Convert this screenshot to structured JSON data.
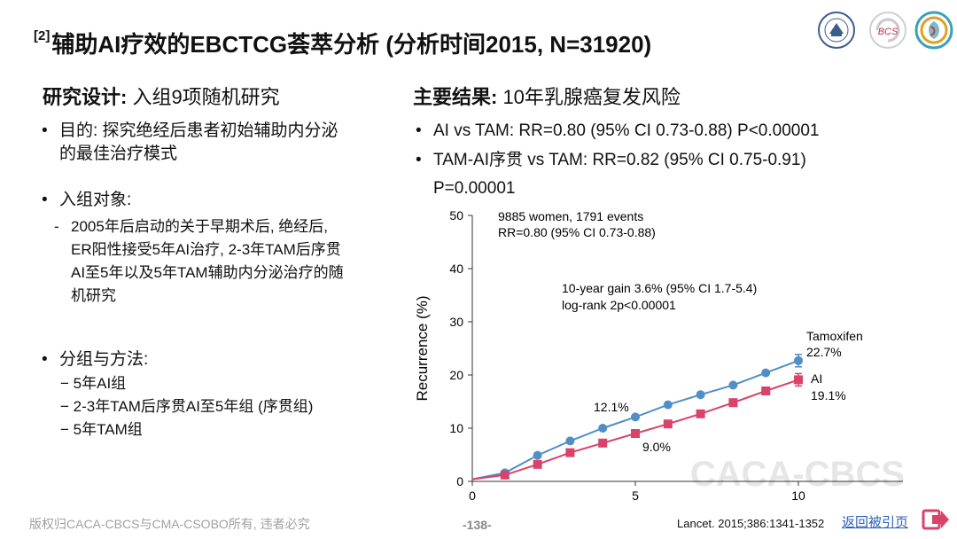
{
  "title": {
    "sup": "[2]",
    "main": "辅助AI疗效的EBCTCG荟萃分析 (分析时间2015, N=31920)"
  },
  "logos": [
    {
      "name": "hospital-logo",
      "text": ""
    },
    {
      "name": "bcs-logo",
      "text": "BCS"
    },
    {
      "name": "caca-logo",
      "text": ""
    }
  ],
  "left": {
    "heading_bold": "研究设计:",
    "heading_rest": " 入组9项随机研究",
    "purpose_line1": "目的: 探究绝经后患者初始辅助内分泌",
    "purpose_line2": "的最佳治疗模式",
    "subjects_label": "入组对象:",
    "subjects_lines": [
      "2005年后启动的关于早期术后, 绝经后,",
      "ER阳性接受5年AI治疗, 2-3年TAM后序贯",
      "AI至5年以及5年TAM辅助内分泌治疗的随",
      "机研究"
    ],
    "groups_label": "分组与方法:",
    "groups": [
      "5年AI组",
      "2-3年TAM后序贯AI至5年组 (序贯组)",
      "5年TAM组"
    ]
  },
  "right": {
    "heading_bold": "主要结果:",
    "heading_rest": " 10年乳腺癌复发风险",
    "result1": "AI vs TAM: RR=0.80 (95% CI 0.73-0.88) P<0.00001",
    "result2_line1": "TAM-AI序贯 vs TAM: RR=0.82 (95% CI 0.75-0.91)",
    "result2_line2": "P=0.00001"
  },
  "chart_data": {
    "type": "line",
    "ylabel": "Recurrence (%)",
    "xlabel": "",
    "xlim": [
      0,
      10
    ],
    "ylim": [
      0,
      50
    ],
    "xticks": [
      "0",
      "5",
      "10"
    ],
    "yticks": [
      "0",
      "10",
      "20",
      "30",
      "40",
      "50"
    ],
    "x": [
      1,
      2,
      3,
      4,
      5,
      6,
      7,
      8,
      9,
      10
    ],
    "series": [
      {
        "name": "Tamoxifen",
        "color": "#4f8fc6",
        "marker": "circle",
        "values": [
          1.6,
          4.9,
          7.6,
          10.0,
          12.1,
          14.4,
          16.3,
          18.1,
          20.4,
          22.7
        ]
      },
      {
        "name": "AI",
        "color": "#d9426a",
        "marker": "square",
        "values": [
          1.2,
          3.2,
          5.4,
          7.2,
          9.0,
          10.8,
          12.7,
          14.8,
          17.0,
          19.1
        ]
      }
    ],
    "annotations": {
      "women": "9885 women, 1791 events",
      "rr": "RR=0.80 (95% CI 0.73-0.88)",
      "gain": "10-year gain 3.6% (95% CI 1.7-5.4)",
      "logrank": "log-rank 2p<0.00001",
      "tam_label": "Tamoxifen",
      "tam_value": "22.7%",
      "ai_label": "AI",
      "ai_value": "19.1%",
      "tam5": "12.1%",
      "ai5": "9.0%"
    },
    "watermark": "CACA-CBCS"
  },
  "footer": {
    "copyright": "版权归CACA-CBCS与CMA-CSOBO所有, 违者必究",
    "page": "-138-",
    "citation": "Lancet. 2015;386:1341-1352",
    "return_link": "返回被引页"
  }
}
